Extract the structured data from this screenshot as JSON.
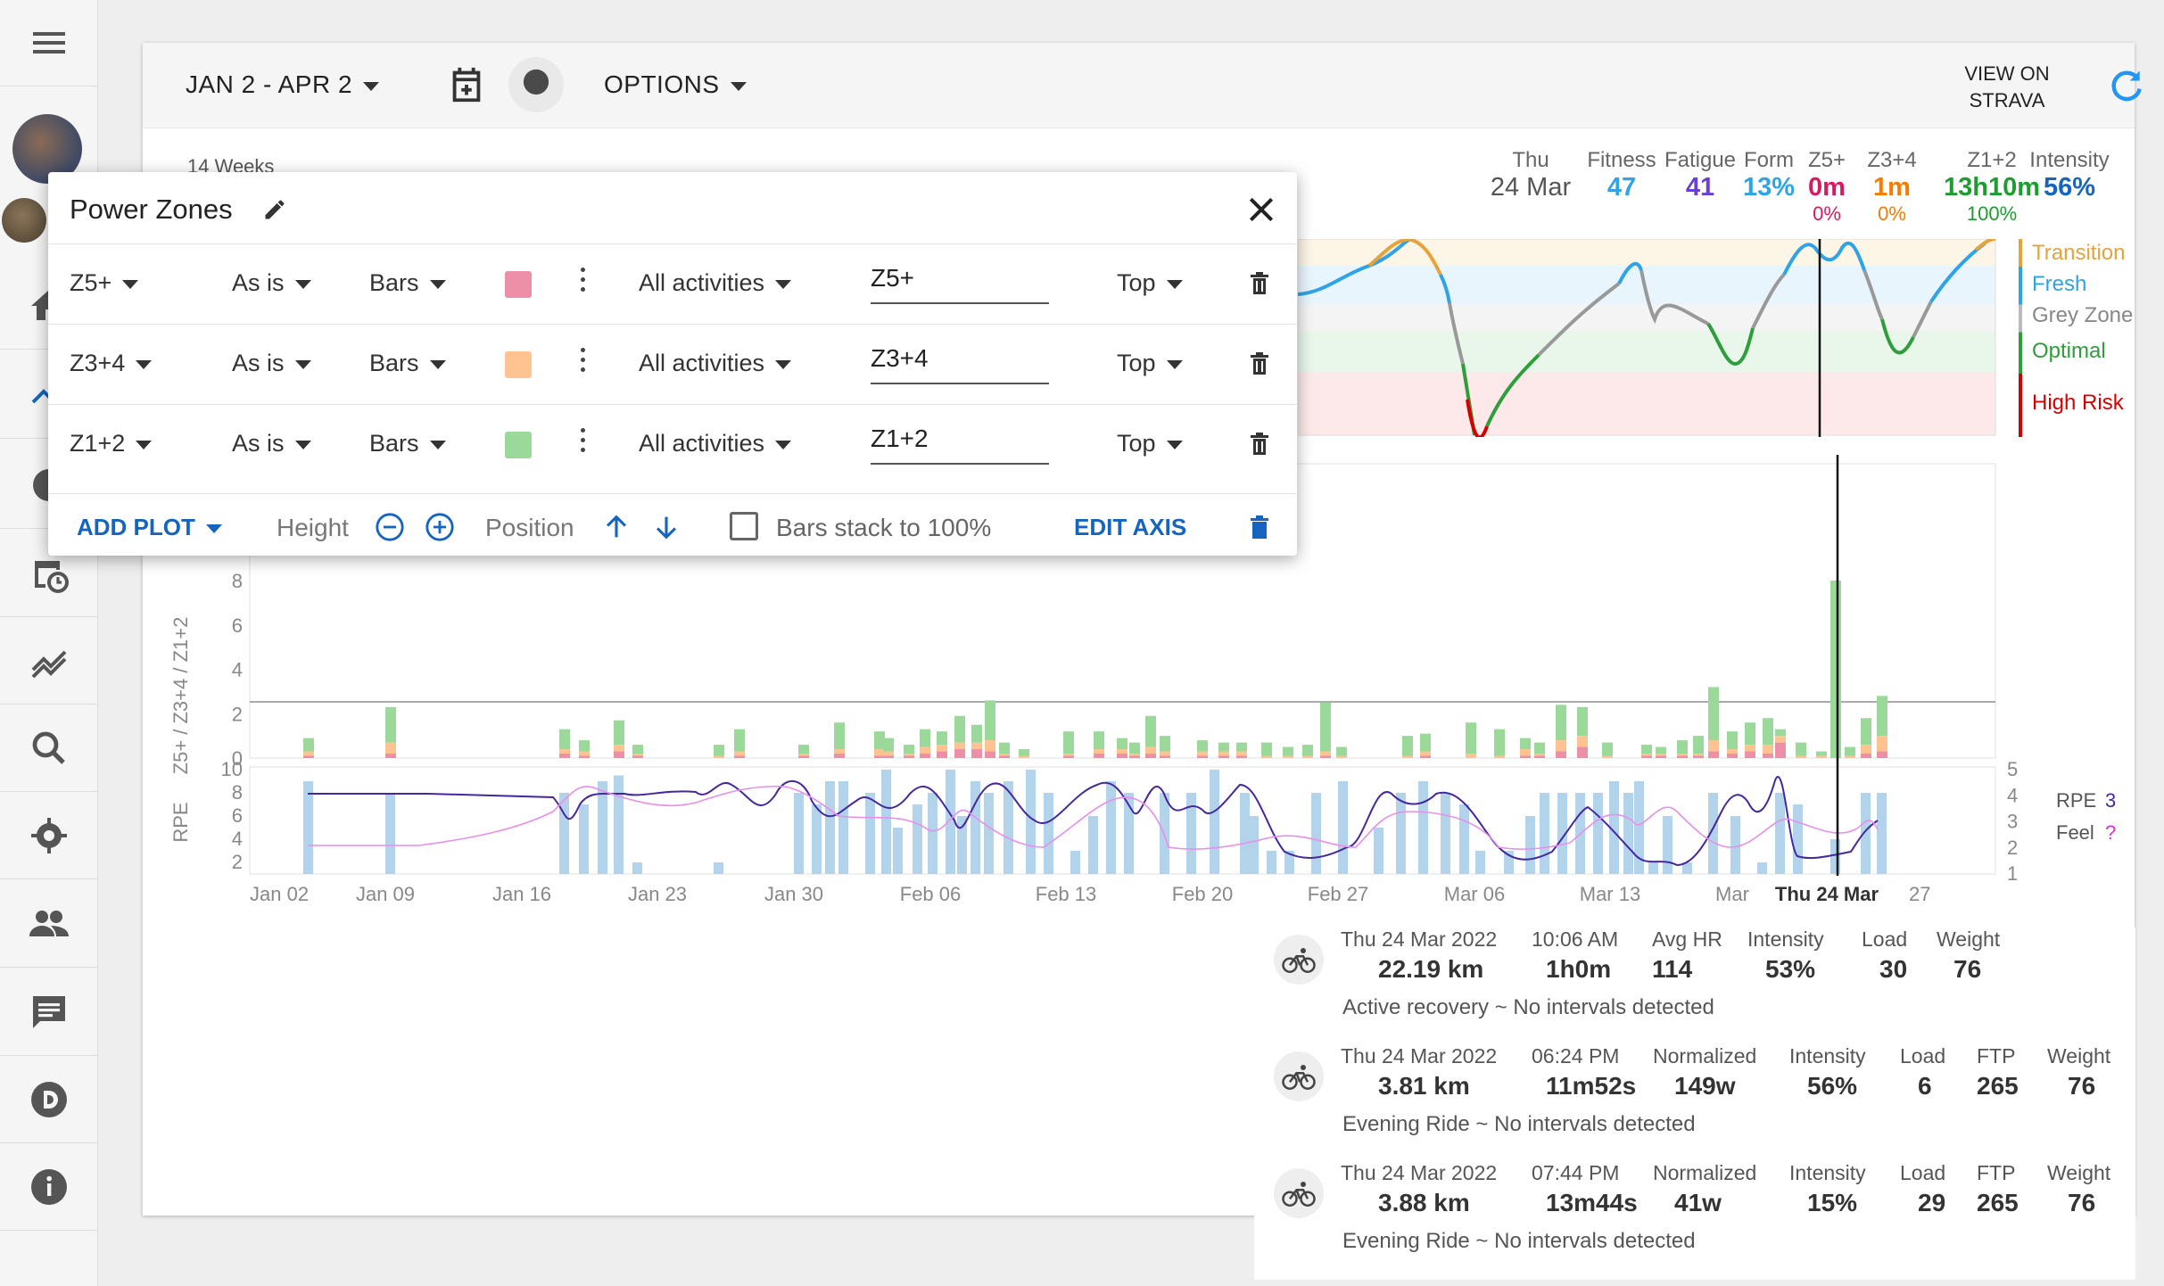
{
  "sidebar": {
    "items": [
      {
        "name": "hamburger-menu-icon"
      },
      {
        "name": "calendar-icon"
      },
      {
        "name": "chart-line-icon"
      },
      {
        "name": "search-icon"
      },
      {
        "name": "gear-icon"
      },
      {
        "name": "people-icon"
      },
      {
        "name": "chat-icon"
      },
      {
        "name": "discord-icon"
      },
      {
        "name": "info-icon"
      }
    ]
  },
  "topbar": {
    "date_range": "JAN 2 - APR 2",
    "options_label": "OPTIONS",
    "view_on_strava_line1": "VIEW ON",
    "view_on_strava_line2": "STRAVA"
  },
  "header": {
    "weeks_label": "14 Weeks",
    "day": "Thu",
    "date": "24 Mar",
    "stats": [
      {
        "label": "Fitness",
        "value": "47",
        "pct": "",
        "color": "#2ea3e6"
      },
      {
        "label": "Fatigue",
        "value": "41",
        "pct": "",
        "color": "#6a3fd6"
      },
      {
        "label": "Form",
        "value": "13%",
        "pct": "",
        "color": "#2ea3e6"
      },
      {
        "label": "Z5+",
        "value": "0m",
        "pct": "0%",
        "color": "#d81b60"
      },
      {
        "label": "Z3+4",
        "value": "1m",
        "pct": "0%",
        "color": "#f57c00"
      },
      {
        "label": "Z1+2",
        "value": "13h10m",
        "pct": "100%",
        "color": "#1b9e2f"
      },
      {
        "label": "Intensity",
        "value": "56%",
        "pct": "",
        "color": "#1565c0"
      }
    ]
  },
  "zones": [
    {
      "label": "Transition",
      "color": "#e6a23c"
    },
    {
      "label": "Fresh",
      "color": "#2ea3e6"
    },
    {
      "label": "Grey Zone",
      "color": "#888888"
    },
    {
      "label": "Optimal",
      "color": "#2e9e3a"
    },
    {
      "label": "High Risk",
      "color": "#d60000"
    }
  ],
  "dialog": {
    "title": "Power Zones",
    "rows": [
      {
        "field": "Z5+",
        "mode": "As is",
        "type": "Bars",
        "color": "#ee8fa8",
        "filter": "All activities",
        "label": "Z5+",
        "position": "Top"
      },
      {
        "field": "Z3+4",
        "mode": "As is",
        "type": "Bars",
        "color": "#ffc391",
        "filter": "All activities",
        "label": "Z3+4",
        "position": "Top"
      },
      {
        "field": "Z1+2",
        "mode": "As is",
        "type": "Bars",
        "color": "#9bd99b",
        "filter": "All activities",
        "label": "Z1+2",
        "position": "Top"
      }
    ],
    "footer": {
      "add_plot": "ADD PLOT",
      "height": "Height",
      "position": "Position",
      "bars_stack": "Bars stack to 100%",
      "edit_axis": "EDIT AXIS"
    }
  },
  "chart_data": {
    "type": "bar",
    "x_ticks": [
      "Jan 02",
      "Jan 09",
      "Jan 16",
      "Jan 23",
      "Jan 30",
      "Feb 06",
      "Feb 13",
      "Feb 20",
      "Feb 27",
      "Mar 06",
      "Mar 13",
      "Mar",
      "Thu 24 Mar",
      "27"
    ],
    "zones_chart": {
      "ylabel": "Z5+ / Z3+4 / Z1+2",
      "y_ticks": [
        "0",
        "2",
        "4",
        "6",
        "8"
      ],
      "ylim": [
        0,
        8
      ],
      "series": [
        {
          "name": "Z5+",
          "color": "#ee8fa8"
        },
        {
          "name": "Z3+4",
          "color": "#ffc391"
        },
        {
          "name": "Z1+2",
          "color": "#9bd99b"
        }
      ]
    },
    "rpe_chart": {
      "ylabel": "RPE",
      "y_ticks": [
        "2",
        "4",
        "6",
        "8",
        "10"
      ],
      "ylim": [
        1,
        10
      ],
      "right_ticks": [
        "1",
        "2",
        "3",
        "4",
        "5"
      ],
      "right_ylim": [
        1,
        5
      ],
      "legend": [
        {
          "name": "RPE",
          "value": "3",
          "color": "#4527a0"
        },
        {
          "name": "Feel",
          "value": "?",
          "color": "#d633d6"
        }
      ]
    }
  },
  "activities": [
    {
      "date": "Thu 24 Mar 2022",
      "distance": "22.19 km",
      "col2_label": "10:06 AM",
      "col2_value": "1h0m",
      "col3_label": "Avg HR",
      "col3_value": "114",
      "intensity_label": "Intensity",
      "intensity": "53%",
      "load_label": "Load",
      "load": "30",
      "ftp_label": "",
      "ftp": "",
      "weight_label": "Weight",
      "weight": "76",
      "desc": "Active recovery ~ No intervals detected"
    },
    {
      "date": "Thu 24 Mar 2022",
      "distance": "3.81 km",
      "col2_label": "06:24 PM",
      "col2_value": "11m52s",
      "col3_label": "Normalized",
      "col3_value": "149w",
      "intensity_label": "Intensity",
      "intensity": "56%",
      "load_label": "Load",
      "load": "6",
      "ftp_label": "FTP",
      "ftp": "265",
      "weight_label": "Weight",
      "weight": "76",
      "desc": "Evening Ride ~ No intervals detected"
    },
    {
      "date": "Thu 24 Mar 2022",
      "distance": "3.88 km",
      "col2_label": "07:44 PM",
      "col2_value": "13m44s",
      "col3_label": "Normalized",
      "col3_value": "41w",
      "intensity_label": "Intensity",
      "intensity": "15%",
      "load_label": "Load",
      "load": "29",
      "ftp_label": "FTP",
      "ftp": "265",
      "weight_label": "Weight",
      "weight": "76",
      "desc": "Evening Ride ~ No intervals detected"
    }
  ]
}
